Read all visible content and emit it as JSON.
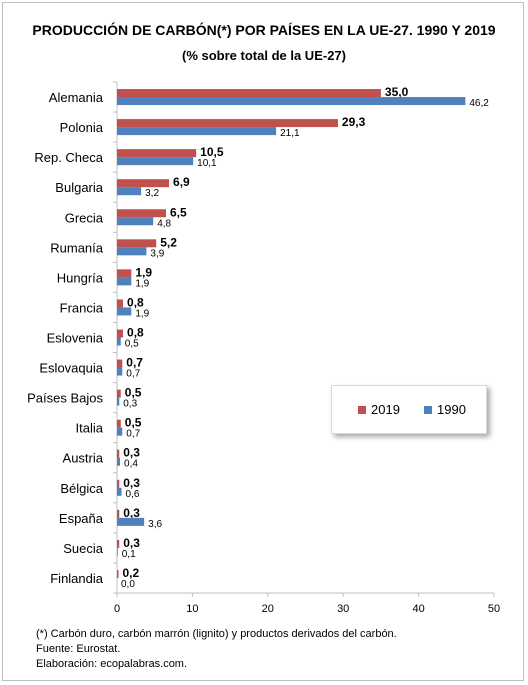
{
  "title": "PRODUCCIÓN DE CARBÓN(*) POR PAÍSES EN LA UE-27. 1990 Y 2019",
  "subtitle": "(% sobre total de la UE-27)",
  "colors": {
    "s2019": "#C0504D",
    "s1990": "#4F81BD"
  },
  "legend": {
    "s2019": "2019",
    "s1990": "1990"
  },
  "footer": {
    "note": "(*) Carbón duro, carbón marrón (lignito) y productos derivados del carbón.",
    "source": "Fuente: Eurostat.",
    "made_by": "Elaboración: ecopalabras.com."
  },
  "chart_data": {
    "type": "bar",
    "orientation": "horizontal",
    "title": "PRODUCCIÓN DE CARBÓN(*) POR PAÍSES EN LA UE-27. 1990 Y 2019",
    "subtitle": "(% sobre total de la UE-27)",
    "categories": [
      "Alemania",
      "Polonia",
      "Rep. Checa",
      "Bulgaria",
      "Grecia",
      "Rumanía",
      "Hungría",
      "Francia",
      "Eslovenia",
      "Eslovaquia",
      "Países Bajos",
      "Italia",
      "Austria",
      "Bélgica",
      "España",
      "Suecia",
      "Finlandia"
    ],
    "series": [
      {
        "name": "2019",
        "values": [
          35.0,
          29.3,
          10.5,
          6.9,
          6.5,
          5.2,
          1.9,
          0.8,
          0.8,
          0.7,
          0.5,
          0.5,
          0.3,
          0.3,
          0.3,
          0.3,
          0.2
        ],
        "labels": [
          "35,0",
          "29,3",
          "10,5",
          "6,9",
          "6,5",
          "5,2",
          "1,9",
          "0,8",
          "0,8",
          "0,7",
          "0,5",
          "0,5",
          "0,3",
          "0,3",
          "0,3",
          "0,3",
          "0,2"
        ]
      },
      {
        "name": "1990",
        "values": [
          46.2,
          21.1,
          10.1,
          3.2,
          4.8,
          3.9,
          1.9,
          1.9,
          0.5,
          0.7,
          0.3,
          0.7,
          0.4,
          0.6,
          3.6,
          0.1,
          0.0
        ],
        "labels": [
          "46,2",
          "21,1",
          "10,1",
          "3,2",
          "4,8",
          "3,9",
          "1,9",
          "1,9",
          "0,5",
          "0,7",
          "0,3",
          "0,7",
          "0,4",
          "0,6",
          "3,6",
          "0,1",
          "0,0"
        ]
      }
    ],
    "xlim": [
      0,
      50
    ],
    "xticks": [
      "0",
      "10",
      "20",
      "30",
      "40",
      "50"
    ],
    "grid": false,
    "legend_position": "right-middle"
  }
}
